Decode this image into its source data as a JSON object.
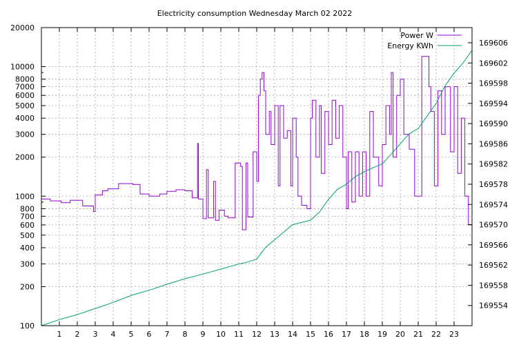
{
  "chart_data": {
    "type": "line",
    "title": "Electricity consumption Wednesday March 02 2022",
    "xlim": [
      0,
      24
    ],
    "x_ticks": [
      1,
      2,
      3,
      4,
      5,
      6,
      7,
      8,
      9,
      10,
      11,
      12,
      13,
      14,
      15,
      16,
      17,
      18,
      19,
      20,
      21,
      22,
      23
    ],
    "y_left": {
      "scale": "log",
      "lim": [
        100,
        20000
      ],
      "ticks": [
        100,
        200,
        300,
        400,
        500,
        600,
        700,
        800,
        1000,
        2000,
        3000,
        4000,
        5000,
        6000,
        7000,
        8000,
        10000,
        20000
      ]
    },
    "y_right": {
      "scale": "linear",
      "lim": [
        169550,
        169609
      ],
      "ticks": [
        169554,
        169558,
        169562,
        169566,
        169570,
        169574,
        169578,
        169582,
        169586,
        169590,
        169594,
        169598,
        169602,
        169606
      ]
    },
    "grid": true,
    "legend_position": "top-right",
    "series": [
      {
        "name": "Power W",
        "axis": "left",
        "color": "#9400d3",
        "style": "step",
        "points": [
          [
            0,
            950
          ],
          [
            0.5,
            920
          ],
          [
            1.1,
            890
          ],
          [
            1.6,
            930
          ],
          [
            2.3,
            840
          ],
          [
            2.9,
            760
          ],
          [
            3.0,
            1020
          ],
          [
            3.4,
            1100
          ],
          [
            3.7,
            1140
          ],
          [
            4.3,
            1250
          ],
          [
            5.1,
            1230
          ],
          [
            5.5,
            1040
          ],
          [
            6.0,
            1000
          ],
          [
            6.6,
            1040
          ],
          [
            7.0,
            1090
          ],
          [
            7.5,
            1120
          ],
          [
            8.0,
            1100
          ],
          [
            8.4,
            970
          ],
          [
            8.7,
            2550
          ],
          [
            8.75,
            950
          ],
          [
            9.0,
            670
          ],
          [
            9.2,
            1600
          ],
          [
            9.3,
            680
          ],
          [
            9.6,
            1300
          ],
          [
            9.7,
            650
          ],
          [
            9.9,
            780
          ],
          [
            10.2,
            700
          ],
          [
            10.4,
            680
          ],
          [
            10.8,
            1800
          ],
          [
            11.1,
            1700
          ],
          [
            11.2,
            550
          ],
          [
            11.4,
            1800
          ],
          [
            11.5,
            690
          ],
          [
            11.8,
            2200
          ],
          [
            12.0,
            1300
          ],
          [
            12.1,
            6000
          ],
          [
            12.2,
            8000
          ],
          [
            12.3,
            9000
          ],
          [
            12.4,
            6500
          ],
          [
            12.5,
            3000
          ],
          [
            12.7,
            4500
          ],
          [
            12.8,
            2500
          ],
          [
            13.0,
            5000
          ],
          [
            13.2,
            1200
          ],
          [
            13.3,
            5000
          ],
          [
            13.5,
            2800
          ],
          [
            13.7,
            3200
          ],
          [
            13.9,
            1200
          ],
          [
            14.0,
            4000
          ],
          [
            14.2,
            2000
          ],
          [
            14.3,
            1000
          ],
          [
            14.5,
            850
          ],
          [
            14.8,
            800
          ],
          [
            15.0,
            4000
          ],
          [
            15.1,
            5500
          ],
          [
            15.3,
            2000
          ],
          [
            15.5,
            5000
          ],
          [
            15.6,
            1500
          ],
          [
            15.8,
            4500
          ],
          [
            16.0,
            2500
          ],
          [
            16.2,
            5500
          ],
          [
            16.4,
            2800
          ],
          [
            16.6,
            5000
          ],
          [
            16.8,
            2000
          ],
          [
            17.0,
            800
          ],
          [
            17.1,
            2200
          ],
          [
            17.3,
            900
          ],
          [
            17.5,
            2200
          ],
          [
            17.7,
            1000
          ],
          [
            17.9,
            2200
          ],
          [
            18.1,
            1000
          ],
          [
            18.3,
            4500
          ],
          [
            18.5,
            2000
          ],
          [
            18.8,
            1200
          ],
          [
            19.0,
            2500
          ],
          [
            19.2,
            5000
          ],
          [
            19.4,
            3000
          ],
          [
            19.5,
            9000
          ],
          [
            19.6,
            2000
          ],
          [
            19.8,
            6000
          ],
          [
            20.0,
            8000
          ],
          [
            20.2,
            3000
          ],
          [
            20.5,
            2300
          ],
          [
            20.8,
            1000
          ],
          [
            21.2,
            12000
          ],
          [
            21.6,
            7000
          ],
          [
            21.7,
            4500
          ],
          [
            21.9,
            1200
          ],
          [
            22.1,
            6500
          ],
          [
            22.3,
            3000
          ],
          [
            22.5,
            7000
          ],
          [
            22.8,
            2200
          ],
          [
            23.0,
            7000
          ],
          [
            23.2,
            1500
          ],
          [
            23.4,
            4000
          ],
          [
            23.6,
            1000
          ],
          [
            23.8,
            600
          ],
          [
            24,
            600
          ]
        ]
      },
      {
        "name": "Energy KWh",
        "axis": "right",
        "color": "#009e73",
        "style": "line",
        "points": [
          [
            0,
            169550.0
          ],
          [
            1,
            169551.2
          ],
          [
            2,
            169552.2
          ],
          [
            3,
            169553.4
          ],
          [
            4,
            169554.6
          ],
          [
            5,
            169556.0
          ],
          [
            6,
            169557.0
          ],
          [
            7,
            169558.2
          ],
          [
            8,
            169559.3
          ],
          [
            9,
            169560.2
          ],
          [
            10,
            169561.2
          ],
          [
            11,
            169562.2
          ],
          [
            11.5,
            169562.6
          ],
          [
            12,
            169563.2
          ],
          [
            12.5,
            169565.5
          ],
          [
            13,
            169567.0
          ],
          [
            13.5,
            169568.5
          ],
          [
            14,
            169570.0
          ],
          [
            15,
            169570.9
          ],
          [
            15.5,
            169572.5
          ],
          [
            16,
            169575.0
          ],
          [
            16.5,
            169577.0
          ],
          [
            17,
            169578.0
          ],
          [
            17.5,
            169579.5
          ],
          [
            18,
            169580.5
          ],
          [
            18.5,
            169581.3
          ],
          [
            19,
            169582.0
          ],
          [
            19.5,
            169584.0
          ],
          [
            20,
            169586.0
          ],
          [
            20.5,
            169588.0
          ],
          [
            21,
            169589.0
          ],
          [
            21.5,
            169591.5
          ],
          [
            22,
            169594.0
          ],
          [
            22.5,
            169597.5
          ],
          [
            23,
            169600.0
          ],
          [
            23.5,
            169602.0
          ],
          [
            24,
            169604.5
          ]
        ]
      }
    ]
  }
}
